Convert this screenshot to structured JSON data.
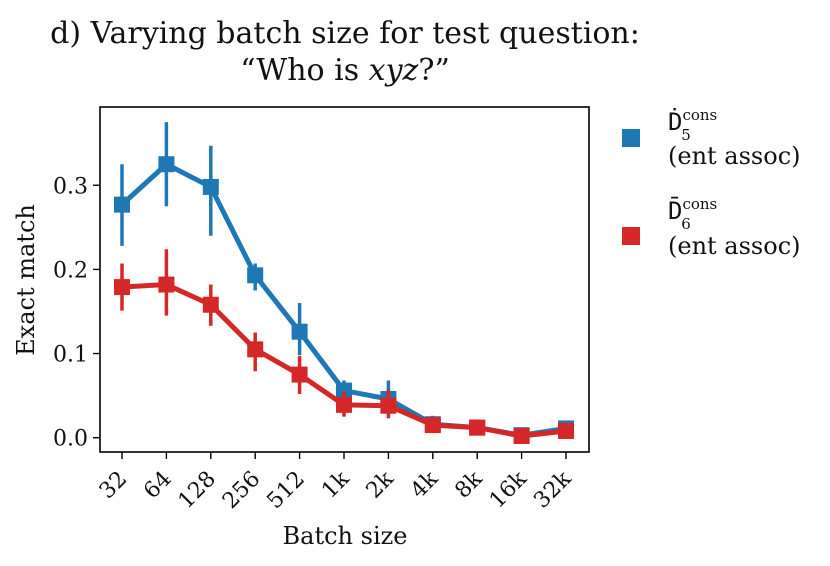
{
  "chart_data": {
    "type": "line",
    "title_line1": "d) Varying batch size for test question:",
    "title_line2_prefix": "“Who is ",
    "title_line2_var": "xyz",
    "title_line2_suffix": "?”",
    "xlabel": "Batch size",
    "ylabel": "Exact match",
    "categories": [
      "32",
      "64",
      "128",
      "256",
      "512",
      "1k",
      "2k",
      "4k",
      "8k",
      "16k",
      "32k"
    ],
    "ylim": [
      -0.017,
      0.393
    ],
    "yticks": [
      0.0,
      0.1,
      0.2,
      0.3
    ],
    "ytick_labels": [
      "0.0",
      "0.1",
      "0.2",
      "0.3"
    ],
    "series": [
      {
        "name": "D5cons (ent assoc)",
        "legend_symbol": "Ḋ",
        "legend_sub": "5",
        "legend_sup": "cons",
        "legend_line2": "(ent assoc)",
        "color": "#1f77b4",
        "values": [
          0.277,
          0.325,
          0.298,
          0.193,
          0.126,
          0.056,
          0.046,
          0.016,
          0.012,
          0.003,
          0.011
        ],
        "err_low": [
          0.228,
          0.275,
          0.24,
          0.175,
          0.098,
          0.043,
          0.028,
          0.008,
          0.007,
          0.0,
          0.006
        ],
        "err_high": [
          0.325,
          0.375,
          0.347,
          0.207,
          0.16,
          0.068,
          0.068,
          0.026,
          0.018,
          0.008,
          0.017
        ]
      },
      {
        "name": "D6cons (ent assoc)",
        "legend_symbol": "D̄",
        "legend_sub": "6",
        "legend_sup": "cons",
        "legend_line2": "(ent assoc)",
        "color": "#d62728",
        "values": [
          0.179,
          0.182,
          0.158,
          0.105,
          0.075,
          0.039,
          0.038,
          0.015,
          0.012,
          0.002,
          0.008
        ],
        "err_low": [
          0.151,
          0.145,
          0.133,
          0.079,
          0.052,
          0.025,
          0.023,
          0.008,
          0.006,
          0.0,
          0.002
        ],
        "err_high": [
          0.207,
          0.224,
          0.182,
          0.125,
          0.097,
          0.055,
          0.057,
          0.023,
          0.018,
          0.008,
          0.014
        ]
      }
    ]
  }
}
